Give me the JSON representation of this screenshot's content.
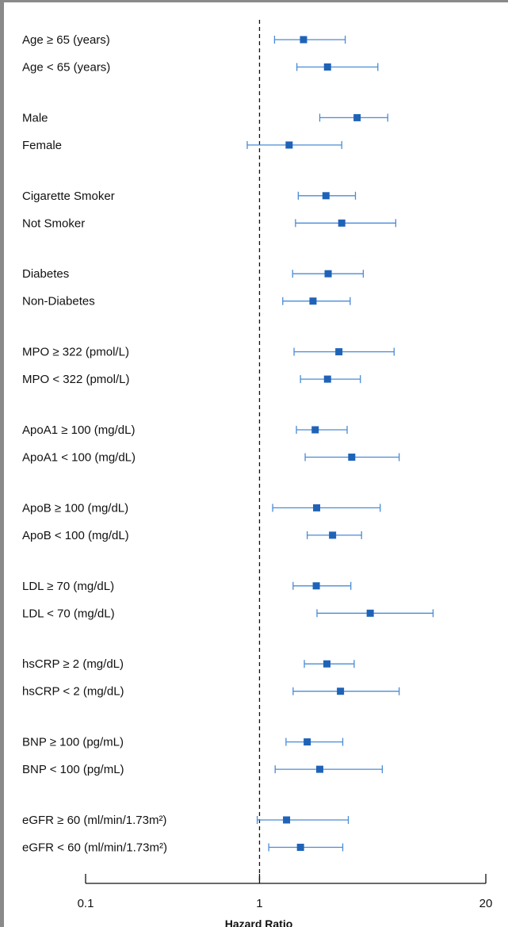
{
  "chart_data": {
    "type": "forest",
    "xlabel": "Hazard Ratio",
    "x_scale": "log",
    "xlim": [
      0.1,
      20
    ],
    "xticks": [
      0.1,
      1,
      20
    ],
    "tick_labels": [
      "0.1",
      "1",
      "20"
    ],
    "reference_line": 1,
    "grid": false,
    "colors": {
      "point": "#1f63b8",
      "interval": "#4a8bd6"
    },
    "rows": [
      {
        "label": "Age ≥ 65 (years)",
        "hr": 1.79,
        "lower": 1.22,
        "upper": 3.11
      },
      {
        "label": "Age < 65 (years)",
        "hr": 2.46,
        "lower": 1.64,
        "upper": 4.79
      },
      {
        "label": "Male",
        "hr": 3.64,
        "lower": 2.22,
        "upper": 5.46
      },
      {
        "label": "Female",
        "hr": 1.48,
        "lower": 0.85,
        "upper": 2.97
      },
      {
        "label": "Cigarette Smoker",
        "hr": 2.41,
        "lower": 1.67,
        "upper": 3.56
      },
      {
        "label": "Not Smoker",
        "hr": 2.97,
        "lower": 1.61,
        "upper": 6.07
      },
      {
        "label": "Diabetes",
        "hr": 2.48,
        "lower": 1.55,
        "upper": 3.95
      },
      {
        "label": "Non-Diabetes",
        "hr": 2.03,
        "lower": 1.36,
        "upper": 3.32
      },
      {
        "label": "MPO ≥ 322 (pmol/L)",
        "hr": 2.86,
        "lower": 1.58,
        "upper": 5.94
      },
      {
        "label": "MPO < 322 (pmol/L)",
        "hr": 2.46,
        "lower": 1.72,
        "upper": 3.8
      },
      {
        "label": "ApoA1 ≥ 100 (mg/dL)",
        "hr": 2.09,
        "lower": 1.63,
        "upper": 3.19
      },
      {
        "label": "ApoA1 < 100 (mg/dL)",
        "hr": 3.39,
        "lower": 1.83,
        "upper": 6.35
      },
      {
        "label": "ApoB ≥ 100 (mg/dL)",
        "hr": 2.13,
        "lower": 1.19,
        "upper": 4.94
      },
      {
        "label": "ApoB < 100 (mg/dL)",
        "hr": 2.63,
        "lower": 1.88,
        "upper": 3.86
      },
      {
        "label": "LDL ≥ 70 (mg/dL)",
        "hr": 2.12,
        "lower": 1.56,
        "upper": 3.35
      },
      {
        "label": "LDL < 70 (mg/dL)",
        "hr": 4.33,
        "lower": 2.14,
        "upper": 9.95
      },
      {
        "label": "hsCRP ≥ 2 (mg/dL)",
        "hr": 2.44,
        "lower": 1.81,
        "upper": 3.5
      },
      {
        "label": "hsCRP < 2 (mg/dL)",
        "hr": 2.92,
        "lower": 1.56,
        "upper": 6.35
      },
      {
        "label": "BNP ≥ 100 (pg/mL)",
        "hr": 1.88,
        "lower": 1.42,
        "upper": 3.01
      },
      {
        "label": "BNP < 100 (pg/mL)",
        "hr": 2.22,
        "lower": 1.23,
        "upper": 5.08
      },
      {
        "label": "eGFR ≥ 60 (ml/min/1.73m²)",
        "hr": 1.43,
        "lower": 0.97,
        "upper": 3.24
      },
      {
        "label": "eGFR < 60 (ml/min/1.73m²)",
        "hr": 1.72,
        "lower": 1.13,
        "upper": 3.01
      }
    ]
  }
}
